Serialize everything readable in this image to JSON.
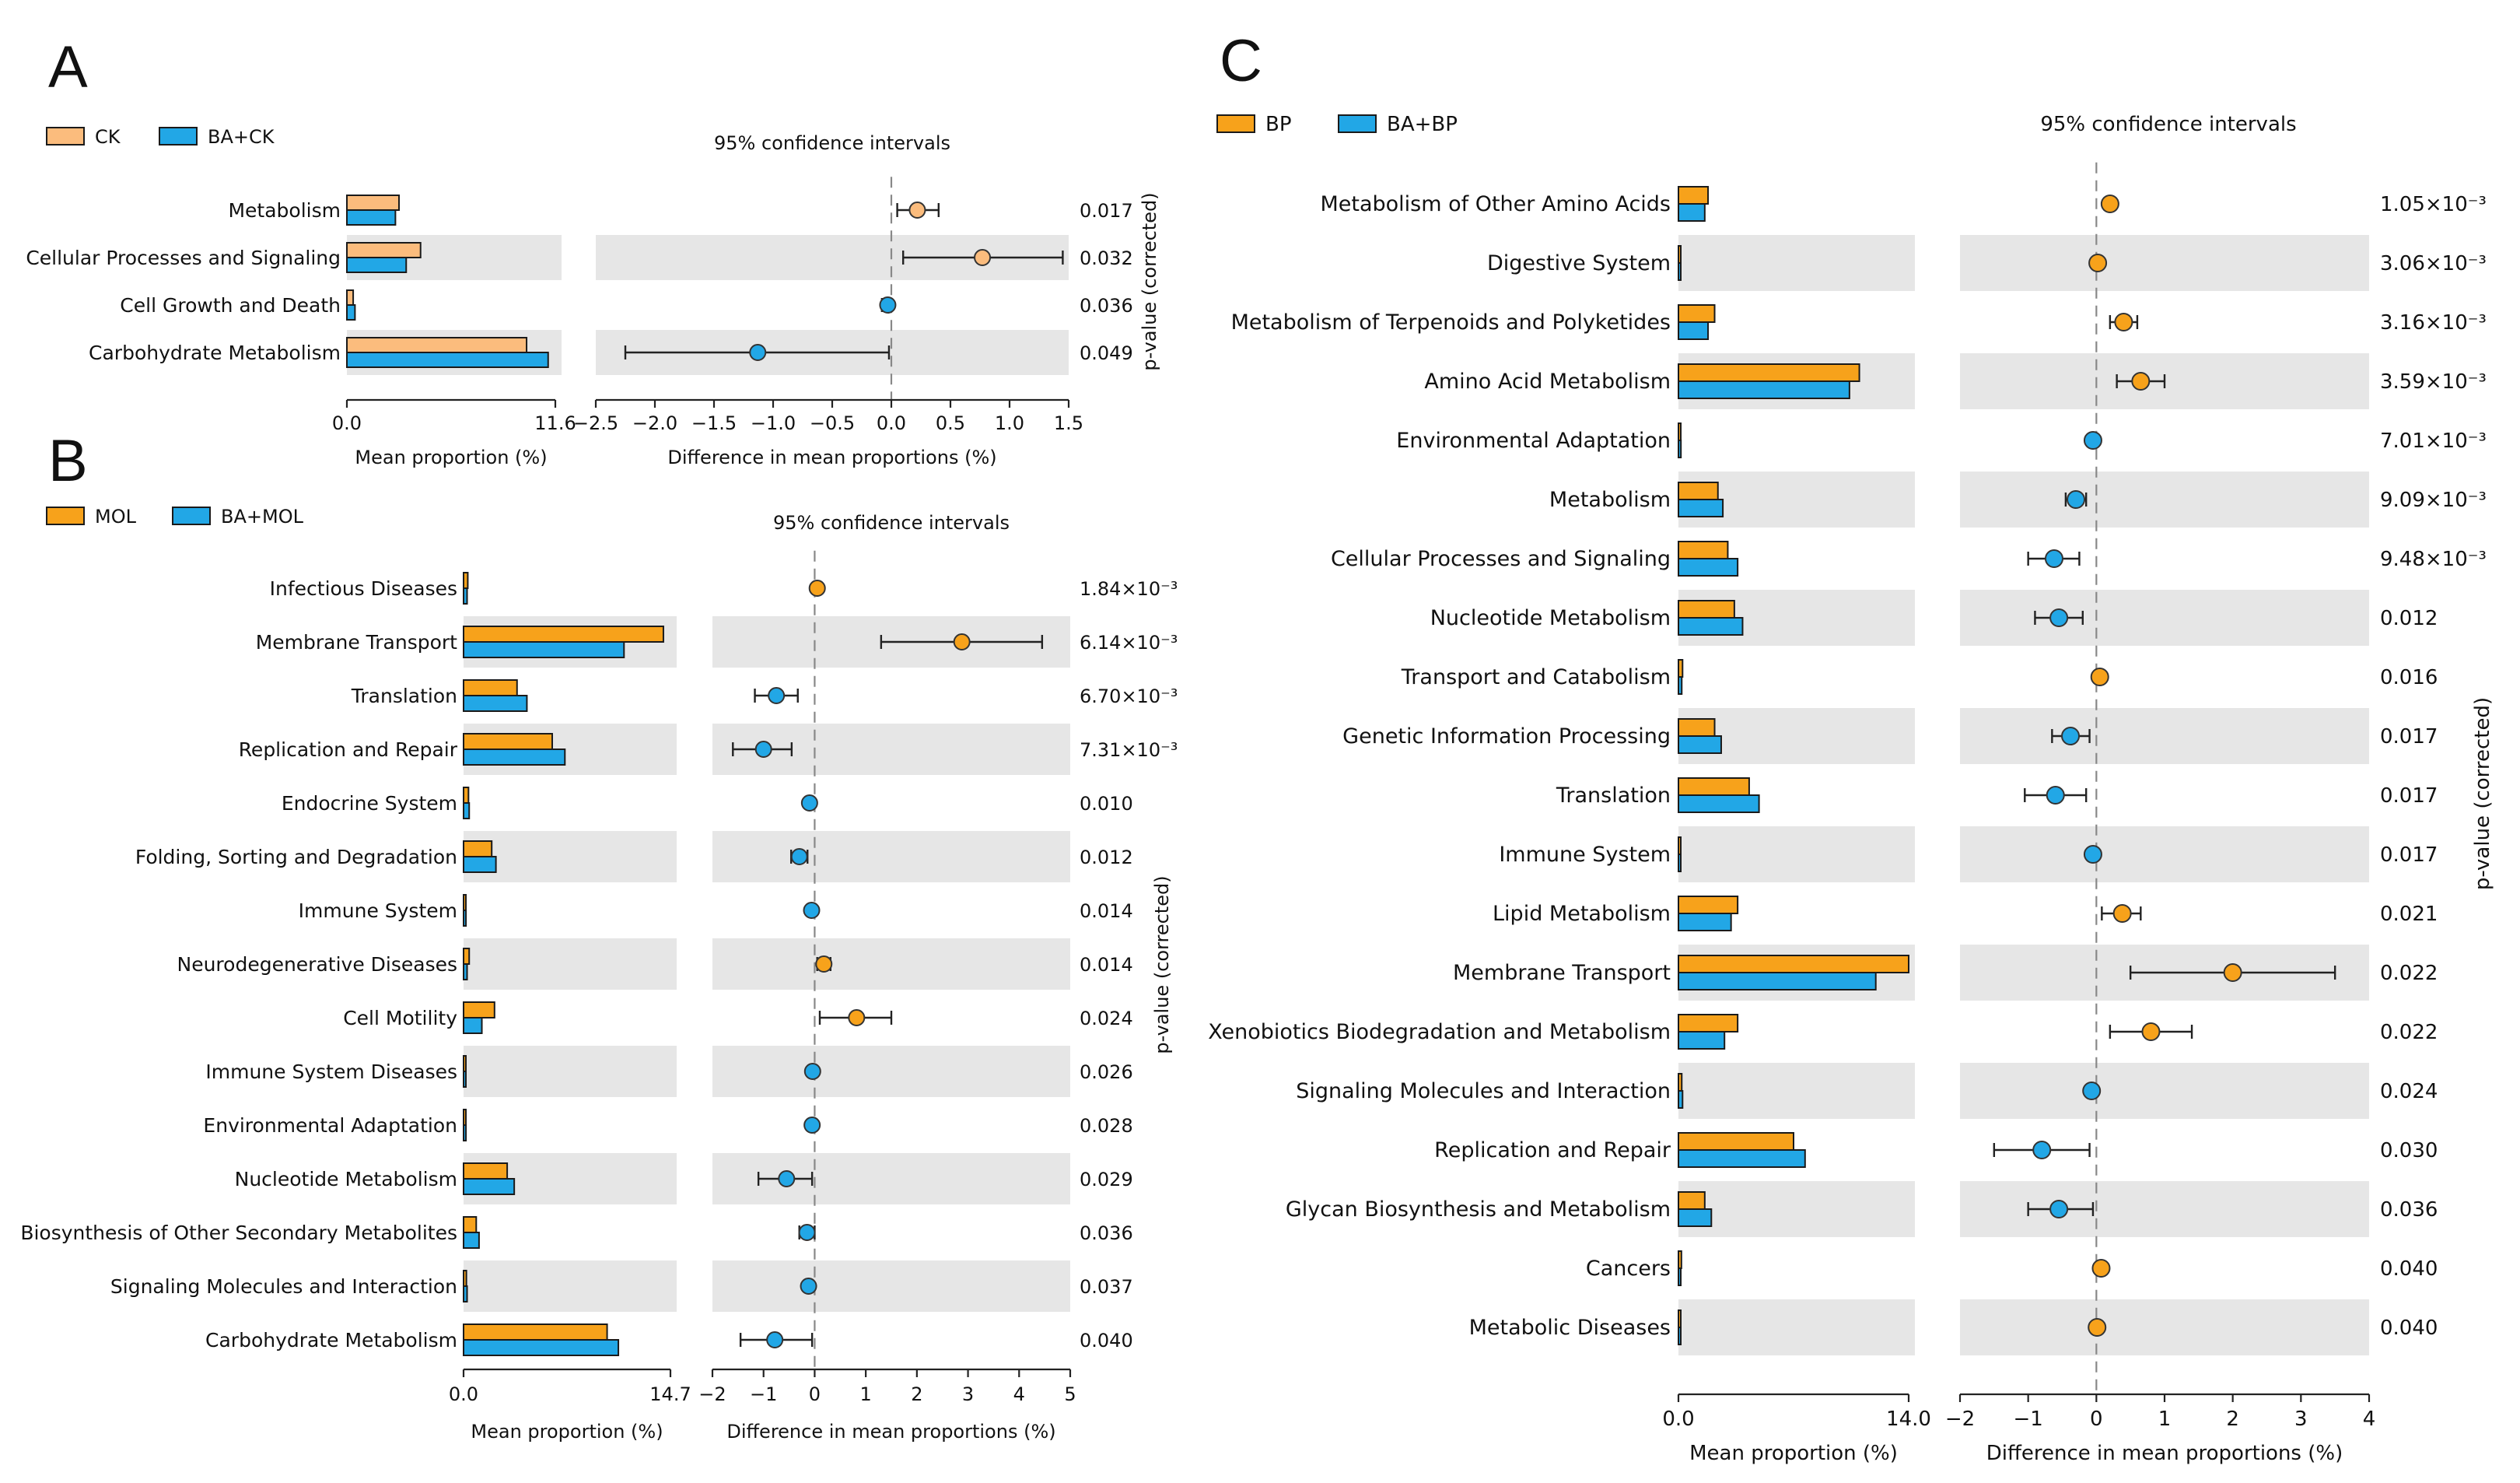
{
  "colors": {
    "orange": "#f7a21b",
    "light_orange": "#fbbc7d",
    "blue": "#22a7e6",
    "band": "#e6e6e6",
    "edge": "#1a1a1a"
  },
  "chart_data": [
    {
      "panel": "A",
      "type": "extended_error_bar",
      "groups": [
        {
          "name": "CK",
          "color": "#fbbc7d"
        },
        {
          "name": "BA+CK",
          "color": "#22a7e6"
        }
      ],
      "ci_title": "95% confidence intervals",
      "pvalue_label": "p-value (corrected)",
      "prop_axis": {
        "label": "Mean proportion (%)",
        "range": [
          0,
          11.6
        ],
        "ticks": [
          "0.0",
          "11.6"
        ]
      },
      "diff_axis": {
        "label": "Difference in mean proportions (%)",
        "range": [
          -2.5,
          1.5
        ],
        "ticks": [
          "−2.5",
          "−2.0",
          "−1.5",
          "−1.0",
          "−0.5",
          "0.0",
          "0.5",
          "1.0",
          "1.5"
        ]
      },
      "rows": [
        {
          "label": "Metabolism",
          "mean1": 2.9,
          "mean2": 2.7,
          "diff": 0.22,
          "ci": [
            0.05,
            0.4
          ],
          "p": "0.017"
        },
        {
          "label": "Cellular Processes and Signaling",
          "mean1": 4.1,
          "mean2": 3.3,
          "diff": 0.77,
          "ci": [
            0.1,
            1.45
          ],
          "p": "0.032"
        },
        {
          "label": "Cell Growth and Death",
          "mean1": 0.35,
          "mean2": 0.45,
          "diff": -0.03,
          "ci": [
            -0.08,
            0.0
          ],
          "p": "0.036"
        },
        {
          "label": "Carbohydrate Metabolism",
          "mean1": 10.0,
          "mean2": 11.2,
          "diff": -1.13,
          "ci": [
            -2.25,
            -0.02
          ],
          "p": "0.049"
        }
      ]
    },
    {
      "panel": "B",
      "type": "extended_error_bar",
      "groups": [
        {
          "name": "MOL",
          "color": "#f7a21b"
        },
        {
          "name": "BA+MOL",
          "color": "#22a7e6"
        }
      ],
      "ci_title": "95% confidence intervals",
      "pvalue_label": "p-value (corrected)",
      "prop_axis": {
        "label": "Mean proportion (%)",
        "range": [
          0,
          14.7
        ],
        "ticks": [
          "0.0",
          "14.7"
        ]
      },
      "diff_axis": {
        "label": "Difference in mean proportions (%)",
        "range": [
          -2,
          5
        ],
        "ticks": [
          "−2",
          "−1",
          "0",
          "1",
          "2",
          "3",
          "4",
          "5"
        ]
      },
      "rows": [
        {
          "label": "Infectious Diseases",
          "mean1": 0.3,
          "mean2": 0.25,
          "diff": 0.05,
          "ci": [
            0.02,
            0.08
          ],
          "p": "1.84×10⁻³"
        },
        {
          "label": "Membrane Transport",
          "mean1": 14.2,
          "mean2": 11.4,
          "diff": 2.88,
          "ci": [
            1.3,
            4.45
          ],
          "p": "6.14×10⁻³"
        },
        {
          "label": "Translation",
          "mean1": 3.8,
          "mean2": 4.5,
          "diff": -0.75,
          "ci": [
            -1.17,
            -0.33
          ],
          "p": "6.70×10⁻³"
        },
        {
          "label": "Replication and Repair",
          "mean1": 6.3,
          "mean2": 7.2,
          "diff": -1.0,
          "ci": [
            -1.6,
            -0.45
          ],
          "p": "7.31×10⁻³"
        },
        {
          "label": "Endocrine System",
          "mean1": 0.35,
          "mean2": 0.4,
          "diff": -0.1,
          "ci": [
            -0.16,
            -0.04
          ],
          "p": "0.010"
        },
        {
          "label": "Folding, Sorting and Degradation",
          "mean1": 2.0,
          "mean2": 2.3,
          "diff": -0.3,
          "ci": [
            -0.46,
            -0.14
          ],
          "p": "0.012"
        },
        {
          "label": "Immune System",
          "mean1": 0.15,
          "mean2": 0.17,
          "diff": -0.06,
          "ci": [
            -0.1,
            -0.02
          ],
          "p": "0.014"
        },
        {
          "label": "Neurodegenerative Diseases",
          "mean1": 0.4,
          "mean2": 0.25,
          "diff": 0.18,
          "ci": [
            0.05,
            0.31
          ],
          "p": "0.014"
        },
        {
          "label": "Cell Motility",
          "mean1": 2.2,
          "mean2": 1.3,
          "diff": 0.82,
          "ci": [
            0.1,
            1.5
          ],
          "p": "0.024"
        },
        {
          "label": "Immune System Diseases",
          "mean1": 0.12,
          "mean2": 0.15,
          "diff": -0.04,
          "ci": [
            -0.08,
            0.0
          ],
          "p": "0.026"
        },
        {
          "label": "Environmental Adaptation",
          "mean1": 0.15,
          "mean2": 0.17,
          "diff": -0.05,
          "ci": [
            -0.09,
            -0.01
          ],
          "p": "0.028"
        },
        {
          "label": "Nucleotide Metabolism",
          "mean1": 3.1,
          "mean2": 3.6,
          "diff": -0.55,
          "ci": [
            -1.1,
            -0.05
          ],
          "p": "0.029"
        },
        {
          "label": "Biosynthesis of Other Secondary Metabolites",
          "mean1": 0.9,
          "mean2": 1.1,
          "diff": -0.15,
          "ci": [
            -0.3,
            0.0
          ],
          "p": "0.036"
        },
        {
          "label": "Signaling Molecules and Interaction",
          "mean1": 0.2,
          "mean2": 0.25,
          "diff": -0.12,
          "ci": [
            -0.18,
            -0.06
          ],
          "p": "0.037"
        },
        {
          "label": "Carbohydrate Metabolism",
          "mean1": 10.2,
          "mean2": 11.0,
          "diff": -0.78,
          "ci": [
            -1.45,
            -0.05
          ],
          "p": "0.040"
        }
      ]
    },
    {
      "panel": "C",
      "type": "extended_error_bar",
      "groups": [
        {
          "name": "BP",
          "color": "#f7a21b"
        },
        {
          "name": "BA+BP",
          "color": "#22a7e6"
        }
      ],
      "ci_title": "95% confidence intervals",
      "pvalue_label": "p-value (corrected)",
      "prop_axis": {
        "label": "Mean proportion (%)",
        "range": [
          0,
          14.0
        ],
        "ticks": [
          "0.0",
          "14.0"
        ]
      },
      "diff_axis": {
        "label": "Difference in mean proportions (%)",
        "range": [
          -2,
          4
        ],
        "ticks": [
          "−2",
          "−1",
          "0",
          "1",
          "2",
          "3",
          "4"
        ]
      },
      "rows": [
        {
          "label": "Metabolism of Other Amino Acids",
          "mean1": 1.8,
          "mean2": 1.6,
          "diff": 0.2,
          "ci": [
            0.12,
            0.28
          ],
          "p": "1.05×10⁻³"
        },
        {
          "label": "Digestive System",
          "mean1": 0.12,
          "mean2": 0.1,
          "diff": 0.02,
          "ci": [
            0.0,
            0.04
          ],
          "p": "3.06×10⁻³"
        },
        {
          "label": "Metabolism of Terpenoids and Polyketides",
          "mean1": 2.2,
          "mean2": 1.8,
          "diff": 0.4,
          "ci": [
            0.2,
            0.6
          ],
          "p": "3.16×10⁻³"
        },
        {
          "label": "Amino Acid Metabolism",
          "mean1": 11.0,
          "mean2": 10.4,
          "diff": 0.65,
          "ci": [
            0.3,
            1.0
          ],
          "p": "3.59×10⁻³"
        },
        {
          "label": "Environmental Adaptation",
          "mean1": 0.12,
          "mean2": 0.15,
          "diff": -0.05,
          "ci": [
            -0.09,
            -0.01
          ],
          "p": "7.01×10⁻³"
        },
        {
          "label": "Metabolism",
          "mean1": 2.4,
          "mean2": 2.7,
          "diff": -0.3,
          "ci": [
            -0.45,
            -0.15
          ],
          "p": "9.09×10⁻³"
        },
        {
          "label": "Cellular Processes and Signaling",
          "mean1": 3.0,
          "mean2": 3.6,
          "diff": -0.62,
          "ci": [
            -1.0,
            -0.25
          ],
          "p": "9.48×10⁻³"
        },
        {
          "label": "Nucleotide Metabolism",
          "mean1": 3.4,
          "mean2": 3.9,
          "diff": -0.55,
          "ci": [
            -0.9,
            -0.2
          ],
          "p": "0.012"
        },
        {
          "label": "Transport and Catabolism",
          "mean1": 0.25,
          "mean2": 0.2,
          "diff": 0.05,
          "ci": [
            0.02,
            0.08
          ],
          "p": "0.016"
        },
        {
          "label": "Genetic Information Processing",
          "mean1": 2.2,
          "mean2": 2.6,
          "diff": -0.38,
          "ci": [
            -0.65,
            -0.1
          ],
          "p": "0.017"
        },
        {
          "label": "Translation",
          "mean1": 4.3,
          "mean2": 4.9,
          "diff": -0.6,
          "ci": [
            -1.05,
            -0.15
          ],
          "p": "0.017"
        },
        {
          "label": "Immune System",
          "mean1": 0.1,
          "mean2": 0.12,
          "diff": -0.05,
          "ci": [
            -0.08,
            -0.02
          ],
          "p": "0.017"
        },
        {
          "label": "Lipid Metabolism",
          "mean1": 3.6,
          "mean2": 3.2,
          "diff": 0.38,
          "ci": [
            0.08,
            0.65
          ],
          "p": "0.021"
        },
        {
          "label": "Membrane Transport",
          "mean1": 14.0,
          "mean2": 12.0,
          "diff": 2.0,
          "ci": [
            0.5,
            3.5
          ],
          "p": "0.022"
        },
        {
          "label": "Xenobiotics Biodegradation and Metabolism",
          "mean1": 3.6,
          "mean2": 2.8,
          "diff": 0.8,
          "ci": [
            0.2,
            1.4
          ],
          "p": "0.022"
        },
        {
          "label": "Signaling Molecules and Interaction",
          "mean1": 0.2,
          "mean2": 0.25,
          "diff": -0.07,
          "ci": [
            -0.12,
            -0.02
          ],
          "p": "0.024"
        },
        {
          "label": "Replication and Repair",
          "mean1": 7.0,
          "mean2": 7.7,
          "diff": -0.8,
          "ci": [
            -1.5,
            -0.1
          ],
          "p": "0.030"
        },
        {
          "label": "Glycan Biosynthesis and Metabolism",
          "mean1": 1.6,
          "mean2": 2.0,
          "diff": -0.55,
          "ci": [
            -1.0,
            -0.05
          ],
          "p": "0.036"
        },
        {
          "label": "Cancers",
          "mean1": 0.18,
          "mean2": 0.14,
          "diff": 0.07,
          "ci": [
            0.02,
            0.12
          ],
          "p": "0.040"
        },
        {
          "label": "Metabolic Diseases",
          "mean1": 0.1,
          "mean2": 0.08,
          "diff": 0.01,
          "ci": [
            -0.02,
            0.04
          ],
          "p": "0.040"
        }
      ]
    }
  ]
}
